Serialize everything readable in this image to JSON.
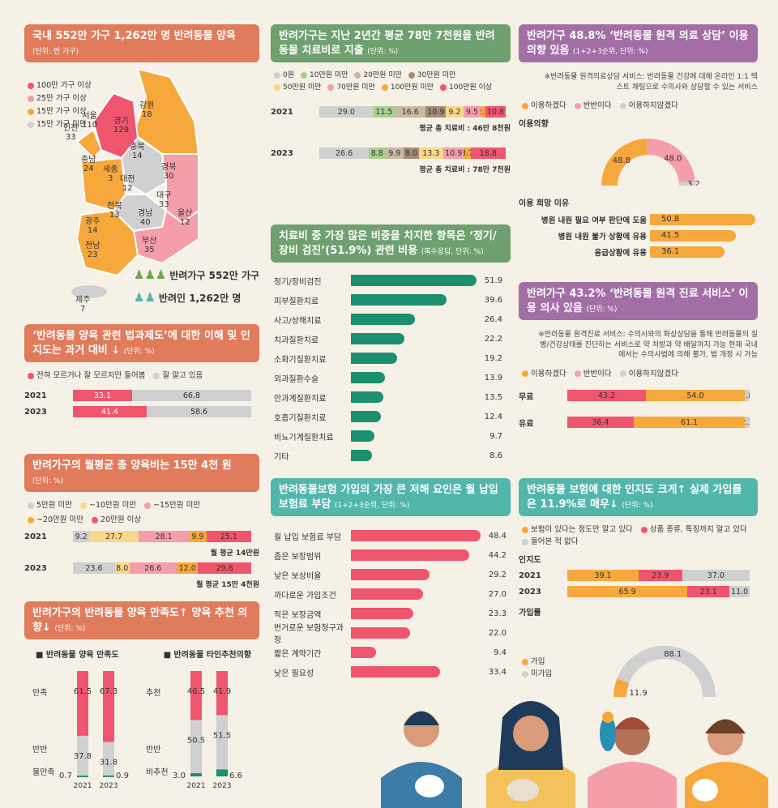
{
  "colors": {
    "orange_header": "#e07b5c",
    "green_header": "#6fa070",
    "purple_header": "#a36ea6",
    "teal_header": "#52b6ab",
    "red": "#f0556e",
    "pink": "#f49eaa",
    "orange": "#f6a83d",
    "grey": "#d0d0d0",
    "yellow": "#f9d88a",
    "green_bar": "#1b8f6e"
  },
  "map": {
    "title": "국내 552만 가구 1,262만 명 반려동물 양육",
    "unit": "(단위: 만 가구)",
    "legend": [
      "100만 가구 이상",
      "25만 가구 이상",
      "15만 가구 이상",
      "15만 가구 미만"
    ],
    "regions": [
      {
        "name": "서울",
        "value": "110"
      },
      {
        "name": "인천",
        "value": "33"
      },
      {
        "name": "경기",
        "value": "129"
      },
      {
        "name": "강원",
        "value": "18"
      },
      {
        "name": "충북",
        "value": "14"
      },
      {
        "name": "충남",
        "value": "24"
      },
      {
        "name": "세종",
        "value": "3"
      },
      {
        "name": "대전",
        "value": "12"
      },
      {
        "name": "경북",
        "value": "30"
      },
      {
        "name": "대구",
        "value": "33"
      },
      {
        "name": "전북",
        "value": "13"
      },
      {
        "name": "경남",
        "value": "40"
      },
      {
        "name": "울산",
        "value": "12"
      },
      {
        "name": "광주",
        "value": "14"
      },
      {
        "name": "부산",
        "value": "35"
      },
      {
        "name": "전남",
        "value": "23"
      },
      {
        "name": "제주",
        "value": "7"
      }
    ],
    "households": "반려가구 552만 가구",
    "people": "반려인 1,262만 명"
  },
  "law": {
    "title": "‘반려동물 양육 관련 법과제도’에 대한 이해 및 인지도는 과거 대비 ↓",
    "unit": "(단위: %)",
    "legend": [
      "전혀 모르거나 잘 모르지만 들어봄",
      "잘 알고 있음"
    ],
    "rows": [
      {
        "year": "2021",
        "values": [
          33.1,
          66.8
        ]
      },
      {
        "year": "2023",
        "values": [
          41.4,
          58.6
        ]
      }
    ]
  },
  "monthly": {
    "title": "반려가구의 월평균 총 양육비는 15만 4천 원",
    "unit": "(단위: %)",
    "legend": [
      "5만원 미만",
      "~10만원 미만",
      "~15만원 미만",
      "~20만원 미만",
      "20만원 이상"
    ],
    "rows": [
      {
        "year": "2021",
        "values": [
          9.2,
          27.7,
          28.1,
          9.9,
          25.1
        ],
        "note": "월 평균 14만원"
      },
      {
        "year": "2023",
        "values": [
          23.6,
          8.0,
          26.6,
          12.0,
          29.8
        ],
        "note": "월 평균 15만 4천원"
      }
    ]
  },
  "satisfaction": {
    "title": "반려가구의 반려동물 양육 만족도↑ 양육 추천 의향↓",
    "unit": "(단위: %)",
    "left_title": "■ 반려동물 양육 만족도",
    "right_title": "■ 반려동물 타인추천의향",
    "left_labels": [
      "만족",
      "반반",
      "불만족"
    ],
    "right_labels": [
      "추천",
      "반반",
      "비추천"
    ],
    "left": [
      {
        "year": "2021",
        "values": [
          61.5,
          37.8,
          0.7
        ]
      },
      {
        "year": "2023",
        "values": [
          67.3,
          31.8,
          0.9
        ]
      }
    ],
    "right": [
      {
        "year": "2021",
        "values": [
          46.5,
          50.5,
          3.0
        ]
      },
      {
        "year": "2023",
        "values": [
          41.9,
          51.5,
          6.6
        ]
      }
    ]
  },
  "treatment": {
    "title": "반려가구는 지난 2년간 평균 78만 7천원을 반려동물 치료비로 지출",
    "unit": "(단위: %)",
    "legend": [
      "0원",
      "10만원 미만",
      "20만원 미만",
      "30만원 미만",
      "50만원 미만",
      "70만원 미만",
      "100만원 미만",
      "100만원 이상"
    ],
    "rows": [
      {
        "year": "2021",
        "values": [
          29.0,
          11.5,
          16.6,
          10.9,
          9.2,
          9.5,
          2.5,
          10.8
        ],
        "labels": [
          "29.0",
          "11.5",
          "16.6",
          "10.9",
          "9.2",
          "9.5",
          "2.5",
          "10.8"
        ],
        "note": "평균 총 치료비 : 46만 8천원"
      },
      {
        "year": "2023",
        "values": [
          26.6,
          8.8,
          9.9,
          8.0,
          13.3,
          10.9,
          3.7,
          18.8
        ],
        "labels": [
          "26.6",
          "8.8",
          "9.9",
          "8.0",
          "13.3",
          "10.9",
          "3.7",
          "18.8"
        ],
        "note": "평균 총 치료비 : 78만 7천원"
      }
    ]
  },
  "items": {
    "title": "치료비 중 가장 많은 비중을 차지한 항목은 ‘정기/장비 검진’(51.9%) 관련 비용",
    "unit": "(복수응답, 단위: %)",
    "rows": [
      {
        "label": "정기/장비검진",
        "value": 51.9
      },
      {
        "label": "피부질환치료",
        "value": 39.6
      },
      {
        "label": "사고/상해치료",
        "value": 26.4
      },
      {
        "label": "치과질환치료",
        "value": 22.2
      },
      {
        "label": "소화기질환치료",
        "value": 19.2
      },
      {
        "label": "외과질환수술",
        "value": 13.9
      },
      {
        "label": "안과계질환치료",
        "value": 13.5
      },
      {
        "label": "호흡기질환치료",
        "value": 12.4
      },
      {
        "label": "비뇨기계질환치료",
        "value": 9.7
      },
      {
        "label": "기타",
        "value": 8.6
      }
    ]
  },
  "insurance_obstacle": {
    "title": "반려동물보험 가입의 가장 큰 저해 요인은 월 납입 보험료 부담",
    "unit": "(1+2+3순위, 단위: %)",
    "rows": [
      {
        "label": "월 납입 보험료 부담",
        "value": 48.4
      },
      {
        "label": "좁은 보장범위",
        "value": 44.2
      },
      {
        "label": "낮은 보상비율",
        "value": 29.2
      },
      {
        "label": "까다로운 가입조건",
        "value": 27.0
      },
      {
        "label": "적은 보장금액",
        "value": 23.3
      },
      {
        "label": "번거로운 보험청구과정",
        "value": 22.0
      },
      {
        "label": "짧은 계약기간",
        "value": 9.4
      },
      {
        "label": "낮은 필요성",
        "value": 33.4
      }
    ]
  },
  "consult": {
    "title": "반려가구 48.8% ‘반려동물 원격 의료 상담’ 이용 의향 있음",
    "unit": "(1+2+3순위, 단위: %)",
    "desc": "※반려동물 원격의료상담 서비스: 반려동물 건강에 대해 온라인 1:1 텍스트 채팅으로 수의사와 상담할 수 있는 서비스",
    "legend": [
      "이용하겠다",
      "반반이다",
      "이용하지않겠다"
    ],
    "intent_label": "이용의향",
    "donut": [
      48.8,
      48.0,
      3.2
    ],
    "reason_label": "이용 희망 이유",
    "reasons": [
      {
        "label": "병원 내원 필요 여부 판단에 도움",
        "value": 50.8
      },
      {
        "label": "병원 내원 불가 상황에 유용",
        "value": 41.5
      },
      {
        "label": "응급상황에 유용",
        "value": 36.1
      }
    ]
  },
  "remote": {
    "title": "반려가구 43.2% ‘반려동물 원격 진료 서비스’ 이용 의사 있음",
    "unit": "(단위: %)",
    "desc": "※반려동물 원격진료 서비스: 수의사와의 화상상담을 통해 반려동물의 질병/건강상태를 진단하는 서비스로 약 처방과 약 배달까지 가능 현재 국내에서는 수의사법에 의해 불가, 법 개정 시 가능",
    "legend": [
      "이용하겠다",
      "반반이다",
      "이용하지않겠다"
    ],
    "rows": [
      {
        "label": "무료",
        "values": [
          43.2,
          54.0,
          2.8
        ]
      },
      {
        "label": "유료",
        "values": [
          36.4,
          61.1,
          2.5
        ]
      }
    ]
  },
  "insurance_aware": {
    "title": "반려동물 보험에 대한 인지도 크게↑ 실제 가입률은 11.9%로 매우↓",
    "unit": "(단위: %)",
    "legend": [
      "보험이 있다는 정도만 알고 있다",
      "상품 종류, 특징까지 알고 있다",
      "들어본 적 없다"
    ],
    "aware_label": "인지도",
    "rows": [
      {
        "year": "2021",
        "values": [
          39.1,
          23.9,
          37.0
        ]
      },
      {
        "year": "2023",
        "values": [
          65.9,
          23.1,
          11.0
        ]
      }
    ],
    "join_label": "가입률",
    "join_legend": [
      "가입",
      "미가입"
    ],
    "join": [
      11.9,
      88.1
    ]
  }
}
